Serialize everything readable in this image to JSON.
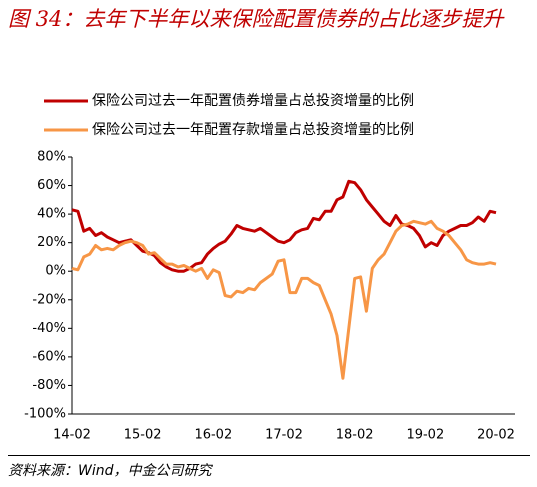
{
  "chart_data": {
    "type": "line",
    "title": "图 34：去年下半年以来保险配置债券的占比逐步提升",
    "source": "资料来源：Wind，中金公司研究",
    "categories": [
      "14-02",
      null,
      null,
      null,
      null,
      null,
      null,
      null,
      null,
      null,
      null,
      null,
      "15-02",
      null,
      null,
      null,
      null,
      null,
      null,
      null,
      null,
      null,
      null,
      null,
      "16-02",
      null,
      null,
      null,
      null,
      null,
      null,
      null,
      null,
      null,
      null,
      null,
      "17-02",
      null,
      null,
      null,
      null,
      null,
      null,
      null,
      null,
      null,
      null,
      null,
      "18-02",
      null,
      null,
      null,
      null,
      null,
      null,
      null,
      null,
      null,
      null,
      null,
      "19-02",
      null,
      null,
      null,
      null,
      null,
      null,
      null,
      null,
      null,
      null,
      null,
      "20-02"
    ],
    "series": [
      {
        "name": "保险公司过去一年配置债券增量占总投资增量的比例",
        "color": "#c00000",
        "values": [
          43,
          42,
          28,
          30,
          25,
          27,
          24,
          22,
          20,
          21,
          22,
          18,
          14,
          13,
          11,
          6,
          3,
          1,
          0,
          0,
          2,
          5,
          6,
          12,
          16,
          19,
          21,
          26,
          32,
          30,
          29,
          28,
          30,
          27,
          24,
          21,
          20,
          22,
          27,
          29,
          30,
          37,
          36,
          42,
          42,
          50,
          52,
          63,
          62,
          57,
          50,
          45,
          40,
          35,
          32,
          39,
          33,
          32,
          30,
          25,
          17,
          20,
          18,
          25,
          28,
          30,
          32,
          32,
          34,
          38,
          35,
          42,
          41
        ]
      },
      {
        "name": "保险公司过去一年配置存款增量占总投资增量的比例",
        "color": "#f79646",
        "values": [
          2,
          1,
          10,
          12,
          18,
          15,
          16,
          15,
          18,
          20,
          21,
          20,
          18,
          12,
          13,
          9,
          5,
          5,
          3,
          4,
          2,
          0,
          2,
          -5,
          1,
          -1,
          -17,
          -18,
          -14,
          -15,
          -12,
          -13,
          -8,
          -5,
          -2,
          7,
          8,
          -15,
          -15,
          -5,
          -5,
          -8,
          -10,
          -20,
          -30,
          -45,
          -75,
          -40,
          -5,
          -4,
          -28,
          2,
          8,
          12,
          20,
          28,
          32,
          33,
          35,
          34,
          33,
          35,
          30,
          28,
          25,
          20,
          15,
          8,
          6,
          5,
          5,
          6,
          5
        ]
      }
    ],
    "ylim": [
      -100,
      80
    ],
    "yticks": [
      {
        "value": -100,
        "label": "-100%"
      },
      {
        "value": -80,
        "label": "-80%"
      },
      {
        "value": -60,
        "label": "-60%"
      },
      {
        "value": -40,
        "label": "-40%"
      },
      {
        "value": -20,
        "label": "-20%"
      },
      {
        "value": 0,
        "label": "0%"
      },
      {
        "value": 20,
        "label": "20%"
      },
      {
        "value": 40,
        "label": "40%"
      },
      {
        "value": 60,
        "label": "60%"
      },
      {
        "value": 80,
        "label": "80%"
      }
    ],
    "legend": "top-left"
  }
}
